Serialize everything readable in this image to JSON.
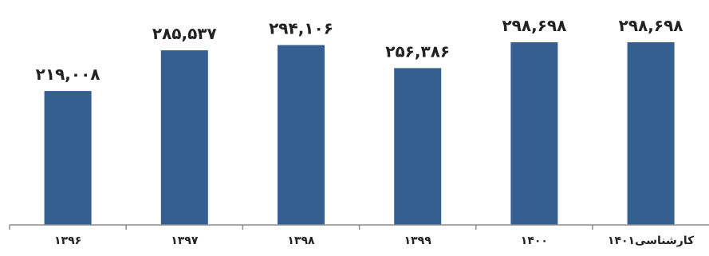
{
  "chart_data": {
    "type": "bar",
    "categories": [
      "۱۳۹۶",
      "۱۳۹۷",
      "۱۳۹۸",
      "۱۳۹۹",
      "۱۴۰۰",
      "کارشناسی۱۴۰۱"
    ],
    "values": [
      219008,
      285537,
      294106,
      256386,
      298698,
      298698
    ],
    "data_labels": [
      "۲۱۹,۰۰۸",
      "۲۸۵,۵۳۷",
      "۲۹۴,۱۰۶",
      "۲۵۶,۳۸۶",
      "۲۹۸,۶۹۸",
      "۲۹۸,۶۹۸"
    ],
    "title": "",
    "xlabel": "",
    "ylabel": "",
    "ylim": [
      0,
      300000
    ],
    "grid": false,
    "legend": "none",
    "colors": {
      "bar": "#365F91",
      "axis": "#8C8C8C",
      "text": "#222222"
    }
  }
}
